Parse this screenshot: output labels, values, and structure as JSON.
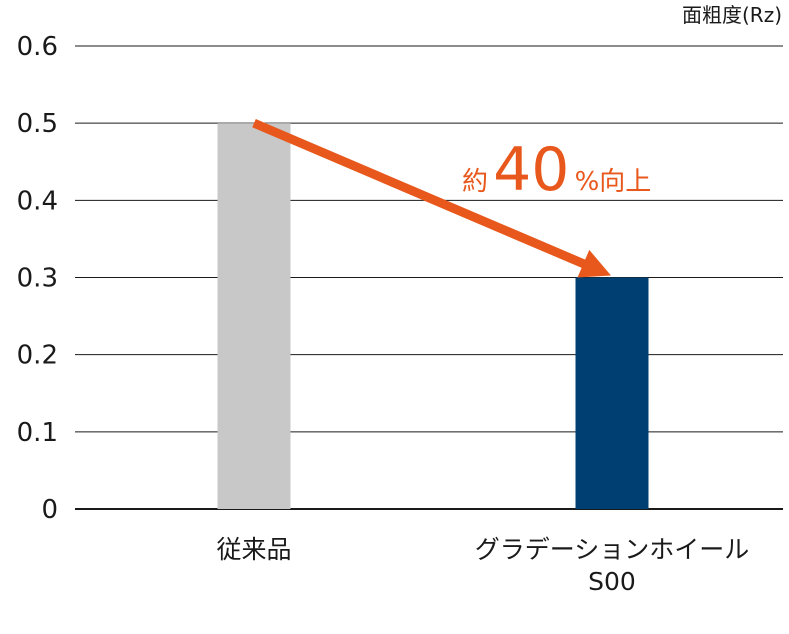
{
  "chart_data": {
    "type": "bar",
    "ylabel": "面粗度(Rz)",
    "ylim": [
      0,
      0.6
    ],
    "yticks": [
      0,
      0.1,
      0.2,
      0.3,
      0.4,
      0.5,
      0.6
    ],
    "ytick_labels": [
      "0",
      "0.1",
      "0.2",
      "0.3",
      "0.4",
      "0.5",
      "0.6"
    ],
    "grid": true,
    "categories": [
      {
        "lines": [
          "従来品"
        ]
      },
      {
        "lines": [
          "グラデーションホイール",
          "S00"
        ]
      }
    ],
    "values": [
      0.5,
      0.3
    ],
    "colors": [
      "#c8c8c8",
      "#003f72"
    ],
    "annotation": {
      "prefix": "約",
      "number": "40",
      "suffix": "%向上",
      "color": "#e8581c"
    }
  }
}
